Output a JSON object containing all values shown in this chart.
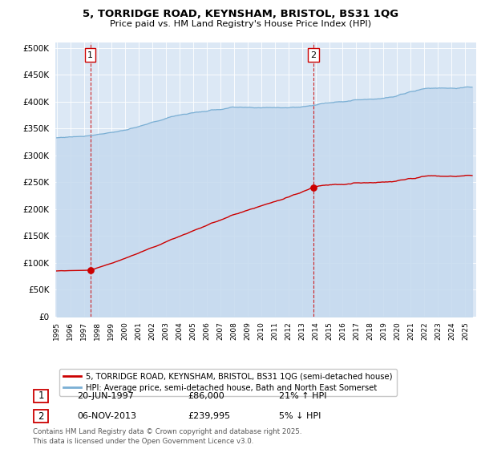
{
  "title1": "5, TORRIDGE ROAD, KEYNSHAM, BRISTOL, BS31 1QG",
  "title2": "Price paid vs. HM Land Registry's House Price Index (HPI)",
  "legend1": "5, TORRIDGE ROAD, KEYNSHAM, BRISTOL, BS31 1QG (semi-detached house)",
  "legend2": "HPI: Average price, semi-detached house, Bath and North East Somerset",
  "annotation1_date": "20-JUN-1997",
  "annotation1_price": "£86,000",
  "annotation1_hpi": "21% ↑ HPI",
  "annotation2_date": "06-NOV-2013",
  "annotation2_price": "£239,995",
  "annotation2_hpi": "5% ↓ HPI",
  "footer": "Contains HM Land Registry data © Crown copyright and database right 2025.\nThis data is licensed under the Open Government Licence v3.0.",
  "sale1_year": 1997.47,
  "sale1_price": 86000,
  "sale2_year": 2013.85,
  "sale2_price": 239995,
  "price_color": "#cc0000",
  "hpi_color": "#7aafd4",
  "hpi_fill_color": "#c5d9ee",
  "background_color": "#dce8f5",
  "grid_color": "#ffffff",
  "ylim_max": 510000,
  "ytick_step": 50000,
  "xlim_start": 1994.9,
  "xlim_end": 2025.8
}
